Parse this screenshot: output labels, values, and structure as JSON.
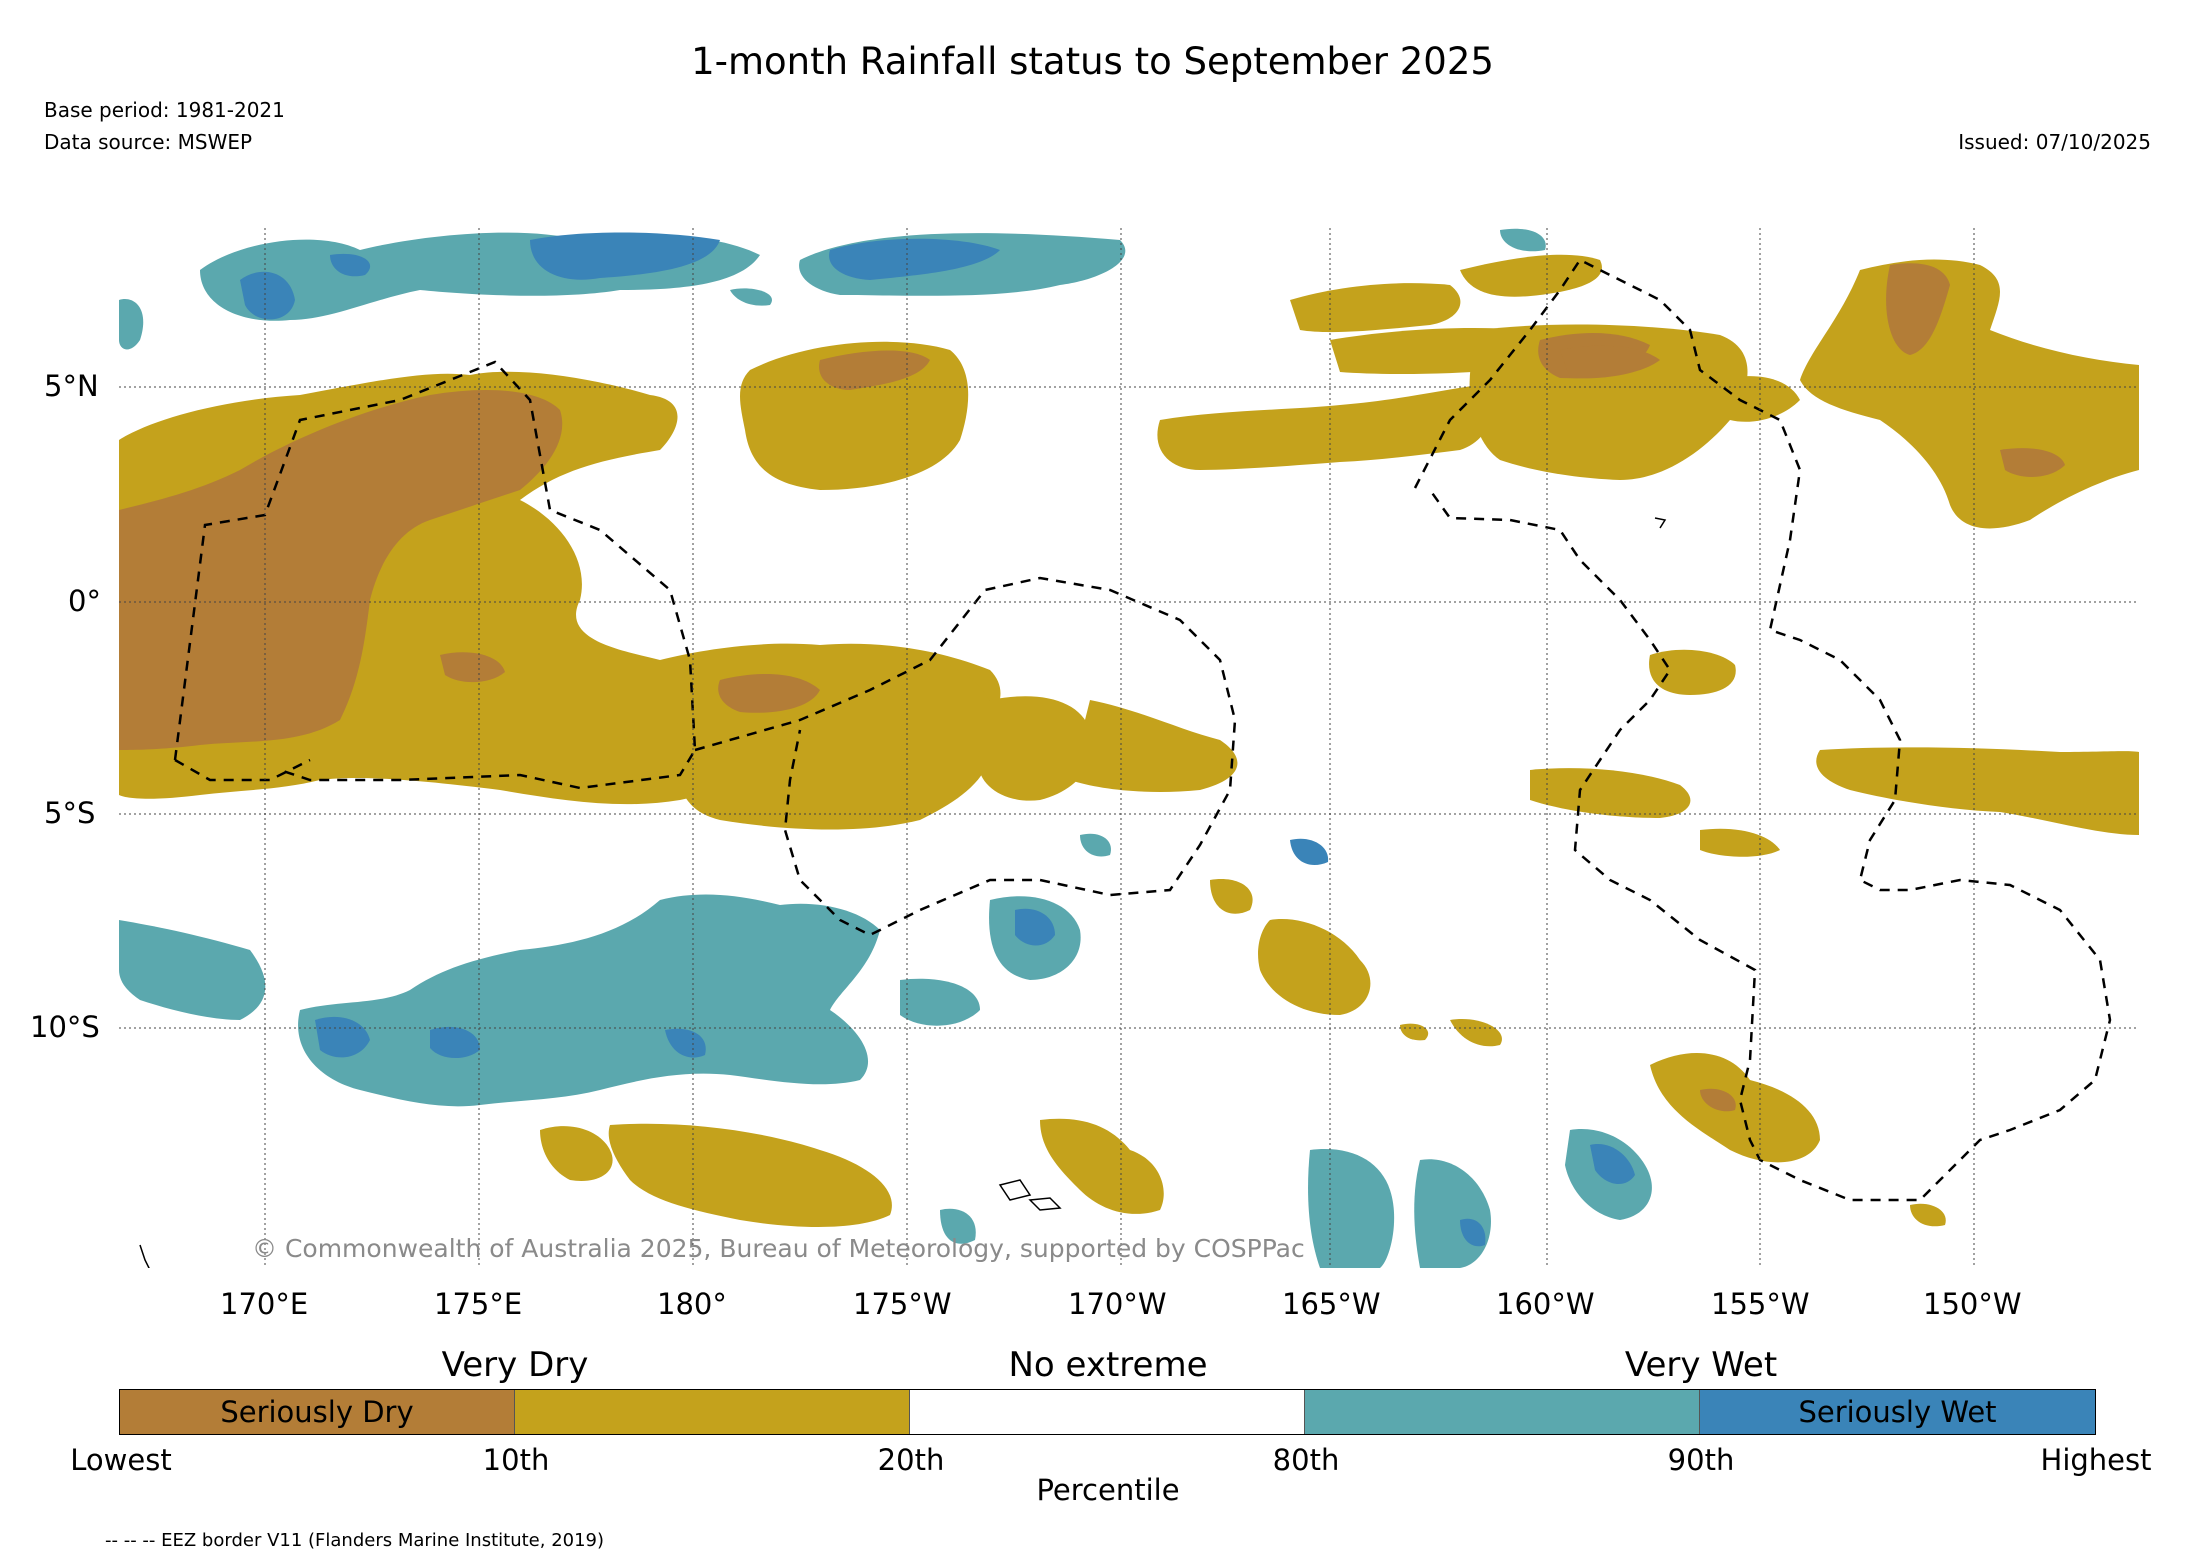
{
  "title": "1-month Rainfall status to September 2025",
  "base_period": "Base period: 1981-2021",
  "data_source": "Data source: MSWEP",
  "issued": "Issued: 07/10/2025",
  "copyright": "© Commonwealth of Australia 2025, Bureau of Meteorology, supported by COSPPac",
  "footnote": "-- -- -- EEZ border V11 (Flanders Marine Institute, 2019)",
  "lat_labels": [
    "5°N",
    "0°",
    "5°S",
    "10°S"
  ],
  "lon_labels": [
    "170°E",
    "175°E",
    "180°",
    "175°W",
    "170°W",
    "165°W",
    "160°W",
    "155°W",
    "150°W"
  ],
  "legend": {
    "categories": [
      "Very Dry",
      "No extreme",
      "Very Wet"
    ],
    "segments": [
      {
        "label": "Seriously Dry",
        "color": "#b37d37"
      },
      {
        "label": "",
        "color": "#c4a21c"
      },
      {
        "label": "",
        "color": "#ffffff"
      },
      {
        "label": "",
        "color": "#5ba8ae"
      },
      {
        "label": "Seriously Wet",
        "color": "#3a84b8"
      }
    ],
    "ticks": [
      "Lowest",
      "10th",
      "20th",
      "80th",
      "90th",
      "Highest"
    ],
    "axis_title": "Percentile"
  },
  "colors": {
    "seriously_dry": "#b37d37",
    "very_dry": "#c4a21c",
    "very_wet": "#5ba8ae",
    "seriously_wet": "#3a84b8",
    "eez_border": "#000000"
  }
}
